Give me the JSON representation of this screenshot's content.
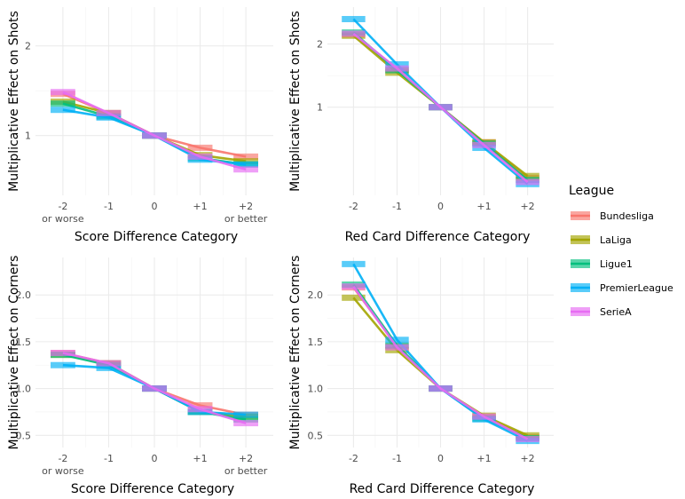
{
  "legend": {
    "title": "League",
    "items": [
      {
        "name": "Bundesliga",
        "color": "#F8766D"
      },
      {
        "name": "LaLiga",
        "color": "#A3A500"
      },
      {
        "name": "Ligue1",
        "color": "#00BF7D"
      },
      {
        "name": "PremierLeague",
        "color": "#00B0F6"
      },
      {
        "name": "SerieA",
        "color": "#E76BF3"
      }
    ]
  },
  "chart_data": [
    {
      "type": "line",
      "xlabel": "Score Difference Category",
      "ylabel": "Multiplicative Effect on Shots",
      "scale": "log",
      "categories": [
        [
          "-2",
          "or worse"
        ],
        [
          "-1"
        ],
        [
          "0"
        ],
        [
          "+1"
        ],
        [
          "+2",
          "or better"
        ]
      ],
      "yticks": [
        1,
        2
      ],
      "ylim": [
        0.63,
        2.7
      ],
      "grid": true,
      "series": [
        {
          "name": "Bundesliga",
          "values": [
            1.38,
            1.19,
            1.0,
            0.91,
            0.85
          ]
        },
        {
          "name": "LaLiga",
          "values": [
            1.3,
            1.19,
            1.0,
            0.86,
            0.82
          ]
        },
        {
          "name": "Ligue1",
          "values": [
            1.28,
            1.16,
            1.0,
            0.84,
            0.8
          ]
        },
        {
          "name": "PremierLeague",
          "values": [
            1.22,
            1.15,
            1.0,
            0.83,
            0.8
          ]
        },
        {
          "name": "SerieA",
          "values": [
            1.4,
            1.19,
            1.0,
            0.85,
            0.77
          ]
        }
      ]
    },
    {
      "type": "line",
      "xlabel": "Red Card Difference Category",
      "ylabel": "Multiplicative Effect on Shots",
      "scale": "log",
      "categories": [
        [
          "-2"
        ],
        [
          "-1"
        ],
        [
          "0"
        ],
        [
          "+1"
        ],
        [
          "+2"
        ]
      ],
      "yticks": [
        1,
        2
      ],
      "ylim": [
        0.38,
        3.0
      ],
      "grid": true,
      "series": [
        {
          "name": "Bundesliga",
          "values": [
            2.22,
            1.5,
            1.0,
            0.68,
            0.46
          ]
        },
        {
          "name": "LaLiga",
          "values": [
            2.19,
            1.46,
            1.0,
            0.68,
            0.47
          ]
        },
        {
          "name": "Ligue1",
          "values": [
            2.27,
            1.5,
            1.0,
            0.67,
            0.45
          ]
        },
        {
          "name": "PremierLeague",
          "values": [
            2.63,
            1.6,
            1.0,
            0.64,
            0.43
          ]
        },
        {
          "name": "SerieA",
          "values": [
            2.24,
            1.53,
            1.0,
            0.66,
            0.44
          ]
        }
      ]
    },
    {
      "type": "line",
      "xlabel": "Score Difference Category",
      "ylabel": "Multiplicative Effect on Corners",
      "scale": "linear",
      "categories": [
        [
          "-2",
          "or worse"
        ],
        [
          "-1"
        ],
        [
          "0"
        ],
        [
          "+1"
        ],
        [
          "+2",
          "or better"
        ]
      ],
      "yticks": [
        0.5,
        1.0,
        1.5,
        2.0
      ],
      "ylim": [
        0.37,
        2.4
      ],
      "grid": true,
      "series": [
        {
          "name": "Bundesliga",
          "values": [
            1.38,
            1.27,
            1.0,
            0.82,
            0.72
          ]
        },
        {
          "name": "LaLiga",
          "values": [
            1.36,
            1.27,
            1.0,
            0.75,
            0.7
          ]
        },
        {
          "name": "Ligue1",
          "values": [
            1.36,
            1.25,
            1.0,
            0.75,
            0.67
          ]
        },
        {
          "name": "PremierLeague",
          "values": [
            1.25,
            1.22,
            1.0,
            0.75,
            0.72
          ]
        },
        {
          "name": "SerieA",
          "values": [
            1.38,
            1.27,
            1.0,
            0.78,
            0.63
          ]
        }
      ]
    },
    {
      "type": "line",
      "xlabel": "Red Card Difference Category",
      "ylabel": "Multiplicative Effect on Corners",
      "scale": "linear",
      "categories": [
        [
          "-2"
        ],
        [
          "-1"
        ],
        [
          "0"
        ],
        [
          "+1"
        ],
        [
          "+2"
        ]
      ],
      "yticks": [
        0.5,
        1.0,
        1.5,
        2.0
      ],
      "ylim": [
        0.37,
        2.4
      ],
      "grid": true,
      "series": [
        {
          "name": "Bundesliga",
          "values": [
            2.08,
            1.45,
            1.0,
            0.7,
            0.48
          ]
        },
        {
          "name": "LaLiga",
          "values": [
            1.97,
            1.41,
            1.0,
            0.71,
            0.5
          ]
        },
        {
          "name": "Ligue1",
          "values": [
            2.11,
            1.46,
            1.0,
            0.68,
            0.47
          ]
        },
        {
          "name": "PremierLeague",
          "values": [
            2.33,
            1.52,
            1.0,
            0.67,
            0.44
          ]
        },
        {
          "name": "SerieA",
          "values": [
            2.09,
            1.44,
            1.0,
            0.7,
            0.46
          ]
        }
      ]
    }
  ]
}
